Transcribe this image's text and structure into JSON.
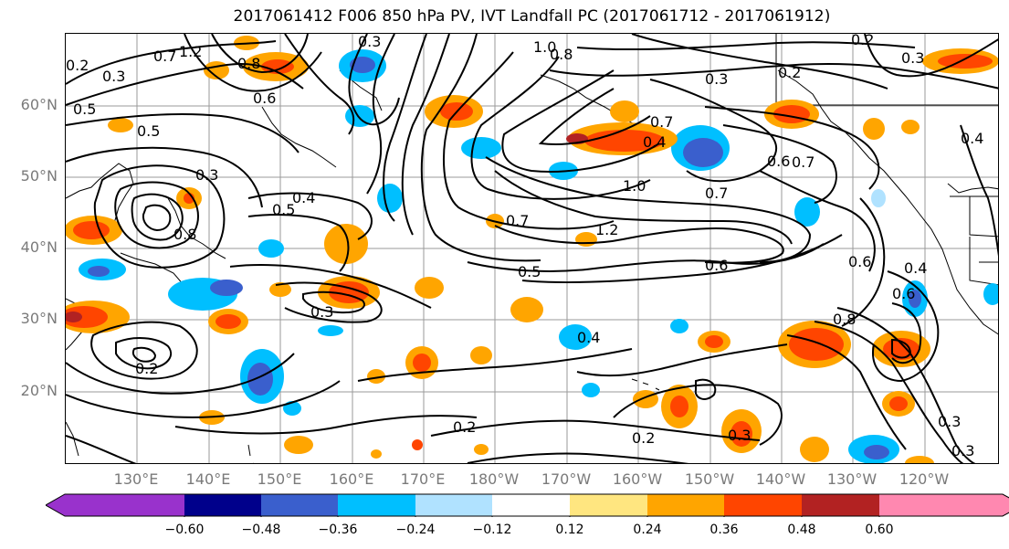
{
  "title": "2017061412 F006 850 hPa PV, IVT Landfall PC (2017061712 - 2017061912)",
  "lat_labels": [
    "60°N",
    "50°N",
    "40°N",
    "30°N",
    "20°N"
  ],
  "lon_labels": [
    "130°E",
    "140°E",
    "150°E",
    "160°E",
    "170°E",
    "180°W",
    "170°W",
    "160°W",
    "150°W",
    "140°W",
    "130°W",
    "120°W"
  ],
  "colorbar": {
    "ticks": [
      "−0.60",
      "−0.48",
      "−0.36",
      "−0.24",
      "−0.12",
      "0.12",
      "0.24",
      "0.36",
      "0.48",
      "0.60"
    ],
    "colors": [
      "#9932cc",
      "#00008b",
      "#3a5fcd",
      "#00bfff",
      "#b0e2ff",
      "#ffffff",
      "#ffe680",
      "#ffa500",
      "#ff4500",
      "#b22222",
      "#ff88b0"
    ]
  },
  "contour_labels": [
    "0.3",
    "0.7",
    "1.2",
    "0.6",
    "0.8",
    "1.0",
    "0.8",
    "0.3",
    "0.2",
    "0.5",
    "0.5",
    "0.3",
    "0.8",
    "0.5",
    "0.4",
    "0.7",
    "1.2",
    "0.5",
    "0.6",
    "0.7",
    "1.0",
    "0.7",
    "0.4",
    "0.6",
    "0.6",
    "0.4",
    "0.8",
    "0.3",
    "0.4",
    "0.2",
    "0.2",
    "0.3",
    "0.3",
    "0.3",
    "0.2",
    "0.4",
    "0.3",
    "0.2",
    "0.2",
    "0.7",
    "0.6",
    "0.3"
  ]
}
